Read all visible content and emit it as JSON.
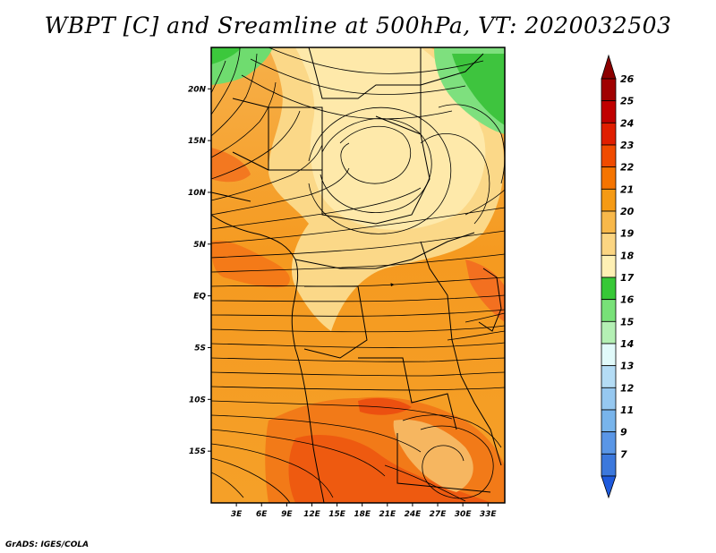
{
  "title": "WBPT [C] and Sreamline at 500hPa, VT: 2020032503",
  "footer": "GrADS: IGES/COLA",
  "map": {
    "lon_range": [
      0,
      35
    ],
    "lat_range": [
      -20,
      24
    ],
    "lat_ticks": [
      {
        "value": 20,
        "label": "20N"
      },
      {
        "value": 15,
        "label": "15N"
      },
      {
        "value": 10,
        "label": "10N"
      },
      {
        "value": 5,
        "label": "5N"
      },
      {
        "value": 0,
        "label": "EQ"
      },
      {
        "value": -5,
        "label": "5S"
      },
      {
        "value": -10,
        "label": "10S"
      },
      {
        "value": -15,
        "label": "15S"
      }
    ],
    "lon_ticks": [
      {
        "value": 3,
        "label": "3E"
      },
      {
        "value": 6,
        "label": "6E"
      },
      {
        "value": 9,
        "label": "9E"
      },
      {
        "value": 12,
        "label": "12E"
      },
      {
        "value": 15,
        "label": "15E"
      },
      {
        "value": 18,
        "label": "18E"
      },
      {
        "value": 21,
        "label": "21E"
      },
      {
        "value": 24,
        "label": "24E"
      },
      {
        "value": 27,
        "label": "27E"
      },
      {
        "value": 30,
        "label": "30E"
      },
      {
        "value": 33,
        "label": "33E"
      }
    ]
  },
  "colorbar": {
    "levels": [
      {
        "label": "26",
        "color": "#a00000"
      },
      {
        "label": "25",
        "color": "#c00000"
      },
      {
        "label": "24",
        "color": "#e01e00"
      },
      {
        "label": "23",
        "color": "#f04b00"
      },
      {
        "label": "22",
        "color": "#f57400"
      },
      {
        "label": "21",
        "color": "#f59a14"
      },
      {
        "label": "20",
        "color": "#f8b84a"
      },
      {
        "label": "19",
        "color": "#fbd582"
      },
      {
        "label": "18",
        "color": "#fef0b4"
      },
      {
        "label": "17",
        "color": "#37c837"
      },
      {
        "label": "16",
        "color": "#78e178"
      },
      {
        "label": "15",
        "color": "#b4f0b4"
      },
      {
        "label": "14",
        "color": "#e1fafa"
      },
      {
        "label": "13",
        "color": "#b4dcf5"
      },
      {
        "label": "12",
        "color": "#96c8f0"
      },
      {
        "label": "11",
        "color": "#78b4eb"
      },
      {
        "label": "9",
        "color": "#5a96e6"
      },
      {
        "label": "7",
        "color": "#3c78dc"
      }
    ],
    "under_color": "#1e5adc",
    "over_color": "#8c0000"
  }
}
